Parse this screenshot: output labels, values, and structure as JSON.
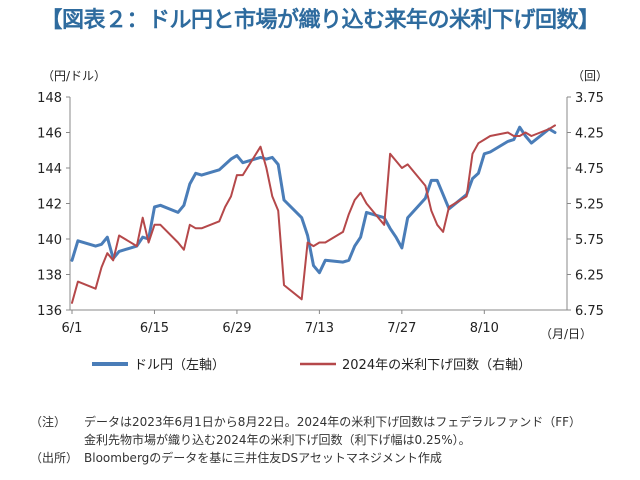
{
  "title": "【図表２：ドル円と市場が織り込む来年の米利下げ回数】",
  "chart_data": {
    "type": "line",
    "title": "【図表２：ドル円と市場が織り込む来年の米利下げ回数】",
    "left_unit": "（円/ドル）",
    "right_unit": "（回）",
    "x_unit": "（月/日）",
    "x_tick_labels": [
      "6/1",
      "6/15",
      "6/29",
      "7/13",
      "7/27",
      "8/10"
    ],
    "y_left": {
      "min": 136,
      "max": 148,
      "ticks": [
        "148",
        "146",
        "144",
        "142",
        "140",
        "138",
        "136"
      ]
    },
    "y_right": {
      "min": 3.75,
      "max": 6.75,
      "inverted": true,
      "ticks": [
        "3.75",
        "4.25",
        "4.75",
        "5.25",
        "5.75",
        "6.25",
        "6.75"
      ]
    },
    "grid": false,
    "legend_position": "bottom",
    "series": [
      {
        "name": "ドル円（左軸）",
        "axis": "left",
        "color": "#4a7db8",
        "x": [
          "2023-06-01",
          "2023-06-02",
          "2023-06-05",
          "2023-06-06",
          "2023-06-07",
          "2023-06-08",
          "2023-06-09",
          "2023-06-12",
          "2023-06-13",
          "2023-06-14",
          "2023-06-15",
          "2023-06-16",
          "2023-06-19",
          "2023-06-20",
          "2023-06-21",
          "2023-06-22",
          "2023-06-23",
          "2023-06-26",
          "2023-06-27",
          "2023-06-28",
          "2023-06-29",
          "2023-06-30",
          "2023-07-03",
          "2023-07-04",
          "2023-07-05",
          "2023-07-06",
          "2023-07-07",
          "2023-07-10",
          "2023-07-11",
          "2023-07-12",
          "2023-07-13",
          "2023-07-14",
          "2023-07-17",
          "2023-07-18",
          "2023-07-19",
          "2023-07-20",
          "2023-07-21",
          "2023-07-24",
          "2023-07-25",
          "2023-07-26",
          "2023-07-27",
          "2023-07-28",
          "2023-07-31",
          "2023-08-01",
          "2023-08-02",
          "2023-08-03",
          "2023-08-04",
          "2023-08-07",
          "2023-08-08",
          "2023-08-09",
          "2023-08-10",
          "2023-08-11",
          "2023-08-14",
          "2023-08-15",
          "2023-08-16",
          "2023-08-17",
          "2023-08-18",
          "2023-08-21",
          "2023-08-22"
        ],
        "values": [
          138.8,
          139.9,
          139.6,
          139.7,
          140.1,
          138.9,
          139.3,
          139.6,
          140.1,
          140.0,
          141.8,
          141.9,
          141.5,
          141.9,
          143.1,
          143.7,
          143.6,
          143.9,
          144.2,
          144.5,
          144.7,
          144.3,
          144.6,
          144.5,
          144.6,
          144.2,
          142.2,
          141.2,
          140.2,
          138.5,
          138.1,
          138.8,
          138.7,
          138.8,
          139.6,
          140.1,
          141.5,
          141.2,
          140.6,
          140.1,
          139.5,
          141.2,
          142.3,
          143.3,
          143.3,
          142.5,
          141.7,
          142.5,
          143.4,
          143.7,
          144.8,
          144.9,
          145.5,
          145.6,
          146.3,
          145.8,
          145.4,
          146.2,
          146.0
        ]
      },
      {
        "name": "2024年の米利下げ回数（右軸）",
        "axis": "right",
        "color": "#b5484a",
        "x": [
          "2023-06-01",
          "2023-06-02",
          "2023-06-05",
          "2023-06-06",
          "2023-06-07",
          "2023-06-08",
          "2023-06-09",
          "2023-06-12",
          "2023-06-13",
          "2023-06-14",
          "2023-06-15",
          "2023-06-16",
          "2023-06-19",
          "2023-06-20",
          "2023-06-21",
          "2023-06-22",
          "2023-06-23",
          "2023-06-26",
          "2023-06-27",
          "2023-06-28",
          "2023-06-29",
          "2023-06-30",
          "2023-07-03",
          "2023-07-04",
          "2023-07-05",
          "2023-07-06",
          "2023-07-07",
          "2023-07-10",
          "2023-07-11",
          "2023-07-12",
          "2023-07-13",
          "2023-07-14",
          "2023-07-17",
          "2023-07-18",
          "2023-07-19",
          "2023-07-20",
          "2023-07-21",
          "2023-07-24",
          "2023-07-25",
          "2023-07-26",
          "2023-07-27",
          "2023-07-28",
          "2023-07-31",
          "2023-08-01",
          "2023-08-02",
          "2023-08-03",
          "2023-08-04",
          "2023-08-07",
          "2023-08-08",
          "2023-08-09",
          "2023-08-10",
          "2023-08-11",
          "2023-08-14",
          "2023-08-15",
          "2023-08-16",
          "2023-08-17",
          "2023-08-18",
          "2023-08-21",
          "2023-08-22"
        ],
        "values": [
          6.65,
          6.35,
          6.45,
          6.15,
          5.95,
          6.05,
          5.7,
          5.85,
          5.45,
          5.8,
          5.55,
          5.55,
          5.8,
          5.9,
          5.55,
          5.6,
          5.6,
          5.5,
          5.3,
          5.15,
          4.85,
          4.85,
          4.45,
          4.75,
          5.15,
          5.35,
          6.4,
          6.6,
          5.8,
          5.85,
          5.8,
          5.8,
          5.65,
          5.4,
          5.2,
          5.1,
          5.25,
          5.55,
          4.55,
          4.65,
          4.75,
          4.7,
          5.0,
          5.35,
          5.55,
          5.65,
          5.3,
          5.15,
          4.55,
          4.4,
          4.35,
          4.3,
          4.25,
          4.3,
          4.3,
          4.25,
          4.3,
          4.2,
          4.15
        ]
      }
    ]
  },
  "legend": [
    {
      "label": "ドル円（左軸）",
      "color": "#4a7db8"
    },
    {
      "label": "2024年の米利下げ回数（右軸）",
      "color": "#b5484a"
    }
  ],
  "notes": [
    {
      "key": "（注）",
      "text": "データは2023年6月1日から8月22日。2024年の米利下げ回数はフェデラルファンド（FF）"
    },
    {
      "key": "",
      "text": "金利先物市場が織り込む2024年の米利下げ回数（利下げ幅は0.25%）。"
    },
    {
      "key": "（出所）",
      "text": "Bloombergのデータを基に三井住友DSアセットマネジメント作成"
    }
  ]
}
